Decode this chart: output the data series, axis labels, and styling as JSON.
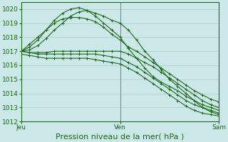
{
  "background_color": "#cce8e8",
  "grid_color": "#aacccc",
  "line_color": "#1a6b1a",
  "title": "Pression niveau de la mer( hPa )",
  "ylim": [
    1012,
    1020.5
  ],
  "yticks": [
    1012,
    1013,
    1014,
    1015,
    1016,
    1017,
    1018,
    1019,
    1020
  ],
  "xtick_labels": [
    "Jeu",
    "Ven",
    "Sam"
  ],
  "xtick_positions": [
    0,
    24,
    48
  ],
  "series": [
    {
      "x": [
        0,
        2,
        4,
        6,
        8,
        10,
        12,
        14,
        16,
        18,
        20,
        22,
        24,
        26,
        28,
        30,
        32,
        34,
        36,
        38,
        40,
        42,
        44,
        46,
        48
      ],
      "y": [
        1017.0,
        1017.1,
        1017.4,
        1017.9,
        1018.5,
        1019.0,
        1019.5,
        1019.8,
        1019.9,
        1019.7,
        1019.5,
        1019.2,
        1019.0,
        1018.5,
        1017.8,
        1017.0,
        1016.4,
        1015.7,
        1015.0,
        1014.5,
        1014.0,
        1013.5,
        1013.0,
        1012.7,
        1012.5
      ]
    },
    {
      "x": [
        0,
        2,
        4,
        6,
        8,
        10,
        12,
        14,
        16,
        18,
        20,
        22,
        24,
        26,
        28,
        30,
        32,
        34,
        36,
        38,
        40,
        42,
        44,
        46,
        48
      ],
      "y": [
        1017.0,
        1017.3,
        1017.8,
        1018.5,
        1019.2,
        1019.7,
        1020.0,
        1020.1,
        1019.9,
        1019.5,
        1019.0,
        1018.5,
        1018.0,
        1017.2,
        1016.5,
        1015.8,
        1015.2,
        1014.8,
        1014.5,
        1014.2,
        1013.8,
        1013.5,
        1013.2,
        1013.0,
        1012.8
      ]
    },
    {
      "x": [
        0,
        2,
        4,
        6,
        8,
        10,
        12,
        14,
        16,
        18,
        20,
        22,
        24,
        26,
        28,
        30,
        32,
        34,
        36,
        38,
        40,
        42,
        44,
        46,
        48
      ],
      "y": [
        1017.0,
        1017.5,
        1018.0,
        1018.5,
        1019.0,
        1019.3,
        1019.4,
        1019.4,
        1019.3,
        1019.1,
        1018.7,
        1018.2,
        1017.8,
        1017.3,
        1017.0,
        1016.6,
        1016.2,
        1015.8,
        1015.4,
        1015.0,
        1014.6,
        1014.2,
        1013.9,
        1013.6,
        1013.4
      ]
    },
    {
      "x": [
        0,
        2,
        4,
        6,
        8,
        10,
        12,
        14,
        16,
        18,
        20,
        22,
        24,
        26,
        28,
        30,
        32,
        34,
        36,
        38,
        40,
        42,
        44,
        46,
        48
      ],
      "y": [
        1017.0,
        1016.9,
        1016.9,
        1016.9,
        1017.0,
        1017.0,
        1017.0,
        1017.0,
        1017.0,
        1017.0,
        1017.0,
        1017.0,
        1017.0,
        1016.8,
        1016.5,
        1016.2,
        1015.9,
        1015.5,
        1015.1,
        1014.7,
        1014.3,
        1013.9,
        1013.5,
        1013.2,
        1013.0
      ]
    },
    {
      "x": [
        0,
        2,
        4,
        6,
        8,
        10,
        12,
        14,
        16,
        18,
        20,
        22,
        24,
        26,
        28,
        30,
        32,
        34,
        36,
        38,
        40,
        42,
        44,
        46,
        48
      ],
      "y": [
        1017.0,
        1016.9,
        1016.8,
        1016.8,
        1016.8,
        1016.8,
        1016.8,
        1016.8,
        1016.8,
        1016.8,
        1016.7,
        1016.6,
        1016.5,
        1016.2,
        1015.9,
        1015.5,
        1015.1,
        1014.7,
        1014.3,
        1013.9,
        1013.5,
        1013.2,
        1013.0,
        1012.8,
        1012.6
      ]
    },
    {
      "x": [
        0,
        2,
        4,
        6,
        8,
        10,
        12,
        14,
        16,
        18,
        20,
        22,
        24,
        26,
        28,
        30,
        32,
        34,
        36,
        38,
        40,
        42,
        44,
        46,
        48
      ],
      "y": [
        1016.8,
        1016.7,
        1016.6,
        1016.5,
        1016.5,
        1016.5,
        1016.5,
        1016.5,
        1016.5,
        1016.4,
        1016.3,
        1016.2,
        1016.1,
        1015.8,
        1015.5,
        1015.1,
        1014.7,
        1014.3,
        1013.9,
        1013.5,
        1013.1,
        1012.8,
        1012.6,
        1012.5,
        1012.4
      ]
    }
  ],
  "marker": "+",
  "markersize": 3,
  "linewidth": 0.8,
  "title_fontsize": 8,
  "tick_fontsize": 6.5
}
